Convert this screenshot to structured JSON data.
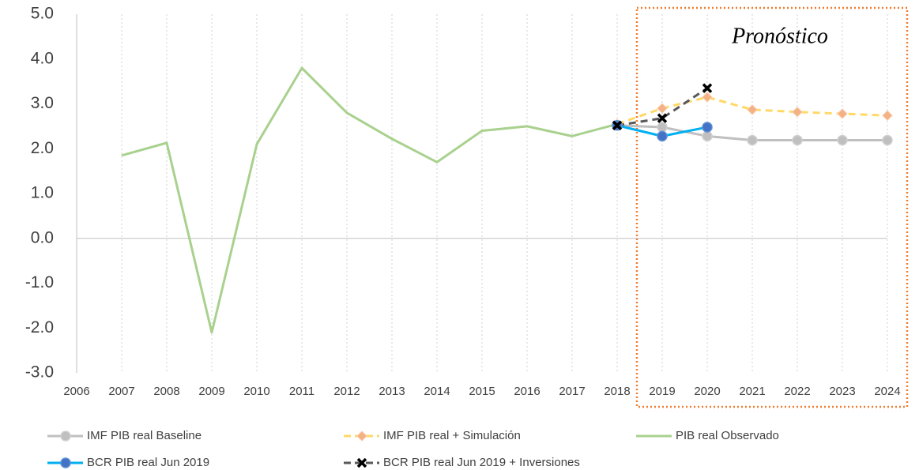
{
  "chart_data": {
    "type": "line",
    "annotation": "Pronóstico",
    "categories": [
      "2006",
      "2007",
      "2008",
      "2009",
      "2010",
      "2011",
      "2012",
      "2013",
      "2014",
      "2015",
      "2016",
      "2017",
      "2018",
      "2019",
      "2020",
      "2021",
      "2022",
      "2023",
      "2024"
    ],
    "ylim": [
      -3,
      5
    ],
    "yticks": [
      {
        "value": 5,
        "label": "5.0"
      },
      {
        "value": 4,
        "label": "4.0"
      },
      {
        "value": 3,
        "label": "3.0"
      },
      {
        "value": 2,
        "label": "2.0"
      },
      {
        "value": 1,
        "label": "1.0"
      },
      {
        "value": 0,
        "label": "0.0"
      },
      {
        "value": -1,
        "label": "-1.0"
      },
      {
        "value": -2,
        "label": "-2.0"
      },
      {
        "value": -3,
        "label": "-3.0"
      }
    ],
    "grid": "vertical-dotted",
    "series": [
      {
        "name": "IMF PIB real Baseline",
        "color": "#bfbfbf",
        "dash": false,
        "marker": "circle",
        "marker_color": "#bfbfbf",
        "values": [
          null,
          null,
          null,
          null,
          null,
          null,
          null,
          null,
          null,
          null,
          null,
          null,
          2.52,
          2.48,
          2.28,
          2.19,
          2.19,
          2.19,
          2.19
        ]
      },
      {
        "name": "IMF PIB real + Simulación",
        "color": "#ffd966",
        "dash": true,
        "marker": "diamond",
        "marker_color": "#f4b183",
        "values": [
          null,
          null,
          null,
          null,
          null,
          null,
          null,
          null,
          null,
          null,
          null,
          null,
          2.55,
          2.9,
          3.15,
          2.87,
          2.82,
          2.78,
          2.74
        ]
      },
      {
        "name": "PIB real Observado",
        "color": "#a9d18e",
        "dash": false,
        "values": [
          null,
          1.85,
          2.13,
          -2.1,
          2.1,
          3.8,
          2.8,
          2.22,
          1.7,
          2.4,
          2.5,
          2.28,
          2.55,
          null,
          null,
          null,
          null,
          null,
          null
        ]
      },
      {
        "name": "BCR PIB real Jun 2019",
        "color": "#00b0f0",
        "dash": false,
        "marker": "circle",
        "marker_color": "#4472c4",
        "values": [
          null,
          null,
          null,
          null,
          null,
          null,
          null,
          null,
          null,
          null,
          null,
          null,
          2.52,
          2.28,
          2.48,
          null,
          null,
          null,
          null
        ]
      },
      {
        "name": "BCR PIB real Jun 2019 + Inversiones",
        "color": "#595959",
        "dash": true,
        "marker": "x",
        "marker_color": "#000000",
        "values": [
          null,
          null,
          null,
          null,
          null,
          null,
          null,
          null,
          null,
          null,
          null,
          null,
          2.52,
          2.68,
          3.35,
          null,
          null,
          null,
          null
        ]
      }
    ]
  }
}
